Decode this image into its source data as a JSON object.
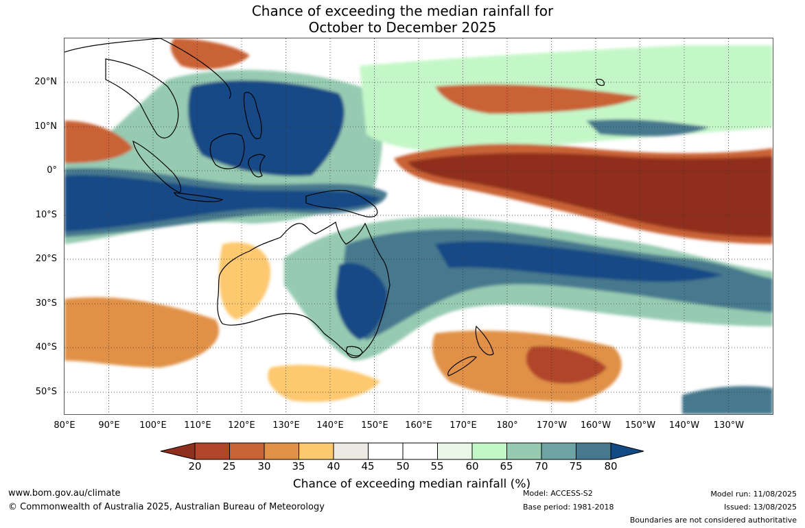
{
  "title": {
    "line1": "Chance of exceeding the median rainfall for",
    "line2": "October to December 2025"
  },
  "map": {
    "type": "probability map",
    "region": "Australia and the western Pacific",
    "lon_range": [
      "80°E",
      "125°W"
    ],
    "lat_range": [
      "30°N",
      "55°S"
    ],
    "grid": true,
    "lat_labels": [
      "20°N",
      "10°N",
      "0°",
      "10°S",
      "20°S",
      "30°S",
      "40°S",
      "50°S"
    ],
    "lon_labels": [
      "80°E",
      "90°E",
      "100°E",
      "110°E",
      "120°E",
      "130°E",
      "140°E",
      "150°E",
      "160°E",
      "170°E",
      "180°",
      "170°W",
      "160°W",
      "150°W",
      "140°W",
      "130°W"
    ]
  },
  "colorbar": {
    "ticks": [
      "20",
      "25",
      "30",
      "35",
      "40",
      "45",
      "50",
      "55",
      "60",
      "65",
      "70",
      "75",
      "80"
    ],
    "label": "Chance of exceeding median rainfall (%)",
    "colors": {
      "below_20": "#8f2f1f",
      "20_25": "#b0452a",
      "25_30": "#c96234",
      "30_35": "#e09147",
      "35_40": "#fdc86e",
      "40_45": "#ece9e2",
      "45_50": "#ffffff",
      "50_55": "#ffffff",
      "55_60": "#e8f7e6",
      "60_65": "#c4f7c8",
      "65_70": "#96cbb2",
      "70_75": "#6ea3a4",
      "75_80": "#46798e",
      "above_80": "#124a85"
    }
  },
  "footer": {
    "website": "www.bom.gov.au/climate",
    "copyright": "© Commonwealth of Australia 2025, Australian Bureau of Meteorology",
    "model": "Model: ACCESS-S2",
    "base_period": "Base period: 1981-2018",
    "model_run": "Model run: 11/08/2025",
    "issued": "Issued: 13/08/2025",
    "disclaimer": "Boundaries are not considered authoritative"
  }
}
